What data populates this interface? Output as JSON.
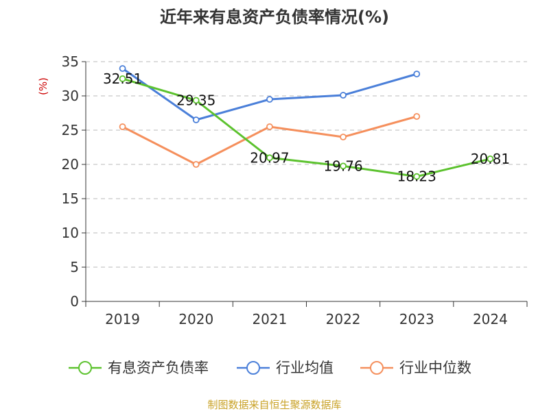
{
  "chart_data": {
    "type": "line",
    "title": "近年来有息资产负债率情况(%)",
    "ylabel": "(%)",
    "ylim": [
      0,
      35
    ],
    "yticks": [
      0,
      5,
      10,
      15,
      20,
      25,
      30,
      35
    ],
    "categories": [
      "2019",
      "2020",
      "2021",
      "2022",
      "2023",
      "2024"
    ],
    "grid": true,
    "legend_position": "bottom",
    "series": [
      {
        "name": "有息资产负债率",
        "color": "#5cc22e",
        "values": [
          32.51,
          29.35,
          20.97,
          19.76,
          18.23,
          20.81
        ],
        "labels": [
          "32.51",
          "29.35",
          "20.97",
          "19.76",
          "18.23",
          "20.81"
        ]
      },
      {
        "name": "行业均值",
        "color": "#4a7fd9",
        "values": [
          34.0,
          26.5,
          29.5,
          30.1,
          33.2,
          null
        ]
      },
      {
        "name": "行业中位数",
        "color": "#f58f5c",
        "values": [
          25.5,
          20.0,
          25.5,
          24.0,
          27.0,
          null
        ]
      }
    ],
    "source": "制图数据来自恒生聚源数据库",
    "ylabel_color": "#cc0000",
    "source_color": "#c9a227"
  }
}
